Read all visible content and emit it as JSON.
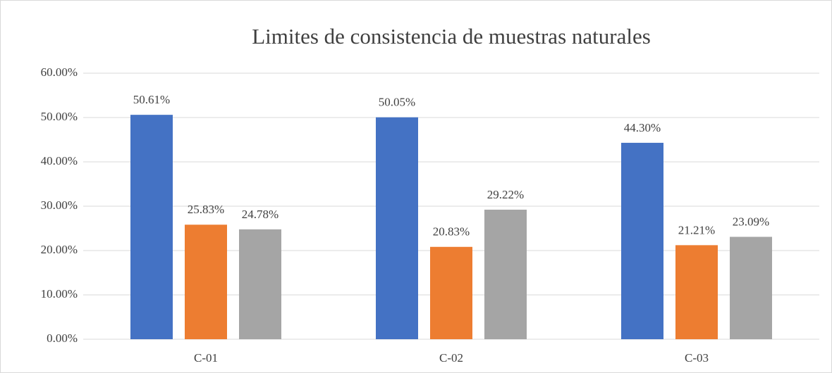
{
  "chart_data": {
    "type": "bar",
    "title": "Limites de consistencia de muestras naturales",
    "categories": [
      "C-01",
      "C-02",
      "C-03"
    ],
    "series": [
      {
        "color": "#4472c4",
        "values": [
          50.61,
          50.05,
          44.3
        ],
        "value_labels": [
          "50.61%",
          "50.05%",
          "44.30%"
        ]
      },
      {
        "color": "#ed7d31",
        "values": [
          25.83,
          20.83,
          21.21
        ],
        "value_labels": [
          "25.83%",
          "20.83%",
          "21.21%"
        ]
      },
      {
        "color": "#a5a5a5",
        "values": [
          24.78,
          29.22,
          23.09
        ],
        "value_labels": [
          "24.78%",
          "29.22%",
          "23.09%"
        ]
      }
    ],
    "ylim": [
      0,
      60
    ],
    "yticks": [
      {
        "value": 0,
        "label": "0.00%"
      },
      {
        "value": 10,
        "label": "10.00%"
      },
      {
        "value": 20,
        "label": "20.00%"
      },
      {
        "value": 30,
        "label": "30.00%"
      },
      {
        "value": 40,
        "label": "40.00%"
      },
      {
        "value": 50,
        "label": "50.00%"
      },
      {
        "value": 60,
        "label": "60.00%"
      }
    ],
    "grid": true
  }
}
